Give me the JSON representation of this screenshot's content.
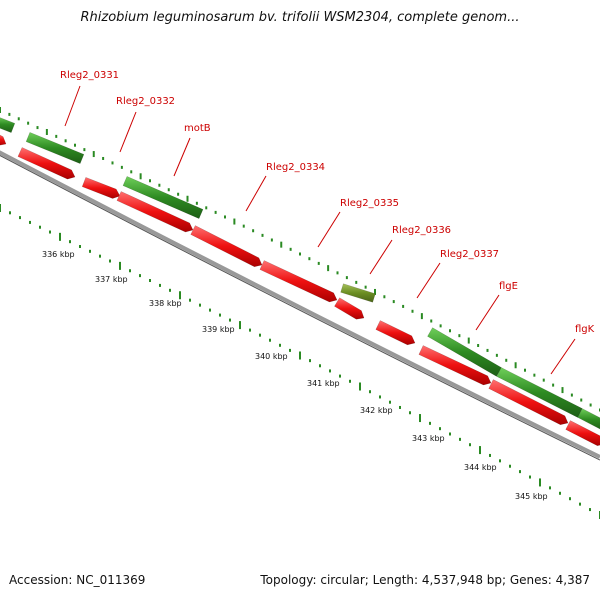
{
  "title": "Rhizobium leguminosarum bv. trifolii WSM2304, complete genom...",
  "footer": {
    "accession": "Accession: NC_011369",
    "summary": "Topology: circular; Length: 4,537,948 bp; Genes: 4,387"
  },
  "colors": {
    "forward_gene": "#2e8b22",
    "reverse_gene": "#ee1111",
    "highlight_gene": "#6b8e23",
    "label": "#cc0000",
    "backbone": "#999999",
    "ticks": "#2a8a22"
  },
  "gene_labels": [
    "Rleg2_0331",
    "Rleg2_0332",
    "motB",
    "Rleg2_0334",
    "Rleg2_0335",
    "Rleg2_0336",
    "Rleg2_0337",
    "flgE",
    "flgK"
  ],
  "kbp_labels": [
    "336 kbp",
    "337 kbp",
    "338 kbp",
    "339 kbp",
    "340 kbp",
    "341 kbp",
    "342 kbp",
    "343 kbp",
    "344 kbp",
    "345 kbp"
  ]
}
